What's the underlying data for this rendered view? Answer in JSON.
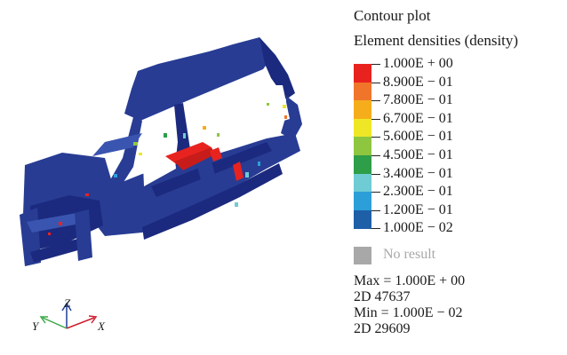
{
  "legend": {
    "title": "Contour plot",
    "subtitle": "Element densities (density)",
    "levels": [
      {
        "label": "1.000E + 00",
        "color": "#e8231f"
      },
      {
        "label": "8.900E − 01",
        "color": "#f0752a"
      },
      {
        "label": "7.800E − 01",
        "color": "#f5ad1c"
      },
      {
        "label": "6.700E − 01",
        "color": "#efe726"
      },
      {
        "label": "5.600E − 01",
        "color": "#8ec63f"
      },
      {
        "label": "4.500E − 01",
        "color": "#2e9e48"
      },
      {
        "label": "3.400E − 01",
        "color": "#6fcbd4"
      },
      {
        "label": "2.300E − 01",
        "color": "#2c9fd9"
      },
      {
        "label": "1.200E − 01",
        "color": "#1f5fa8"
      },
      {
        "label": "1.000E − 02",
        "color": "#283c94"
      }
    ],
    "no_result_label": "No result",
    "no_result_color": "#a8a8a8"
  },
  "stats": {
    "max": "Max = 1.000E + 00",
    "max_elem": "2D 47637",
    "min": "Min = 1.000E − 02",
    "min_elem": "2D 29609"
  },
  "axes": {
    "z": "Z",
    "y": "Y",
    "x": "X"
  },
  "colors": {
    "model_dark": "#1b2a7e",
    "model_body": "#283c94",
    "model_light": "#3a55b0",
    "high_density": "#e8231f",
    "axis_x": "#cf2030",
    "axis_y": "#3aa845",
    "axis_z": "#1f3f9a"
  }
}
